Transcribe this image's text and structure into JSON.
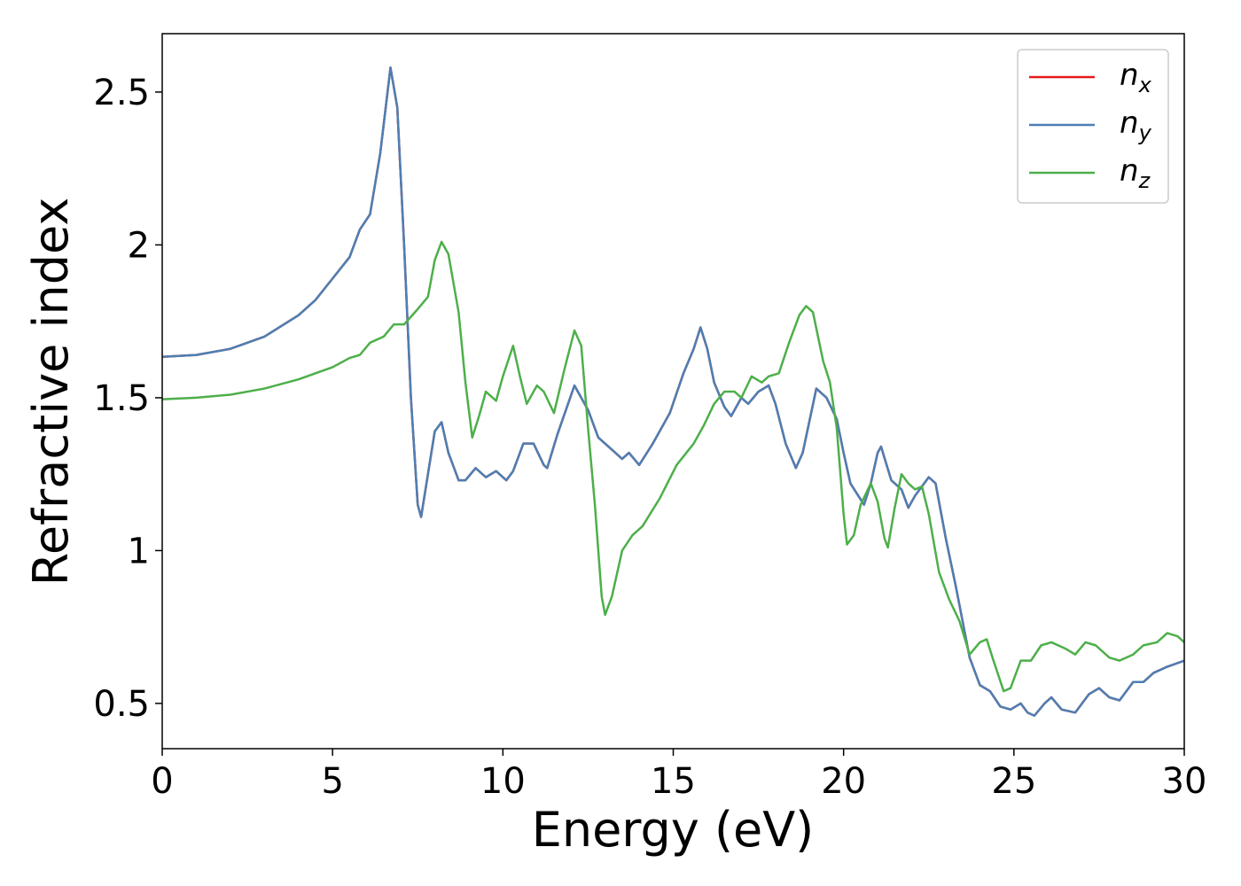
{
  "chart_data": {
    "type": "line",
    "xlabel": "Energy (eV)",
    "ylabel": "Refractive index",
    "xlim": [
      0,
      30
    ],
    "xticks": [
      0,
      5,
      10,
      15,
      20,
      25,
      30
    ],
    "ylim": [
      0.352,
      2.691
    ],
    "yticks": [
      0.5,
      1.0,
      1.5,
      2.0,
      2.5
    ],
    "legend": "upper right",
    "series": [
      {
        "name": "nx",
        "color": "#e41a1c",
        "x": [
          0,
          1,
          2,
          3,
          4,
          4.5,
          5,
          5.5,
          5.8,
          6.1,
          6.4,
          6.7,
          6.9,
          7.1,
          7.3,
          7.5,
          7.6,
          7.8,
          8.0,
          8.2,
          8.4,
          8.7,
          8.9,
          9.2,
          9.5,
          9.8,
          10.1,
          10.3,
          10.6,
          10.9,
          11.2,
          11.3,
          11.6,
          12.1,
          12.5,
          12.8,
          13.2,
          13.5,
          13.7,
          14.0,
          14.4,
          14.9,
          15.3,
          15.6,
          15.8,
          16.0,
          16.2,
          16.5,
          16.7,
          17.0,
          17.2,
          17.5,
          17.8,
          18.0,
          18.3,
          18.6,
          18.8,
          19.2,
          19.5,
          19.8,
          20.0,
          20.2,
          20.6,
          20.8,
          21.0,
          21.1,
          21.4,
          21.7,
          21.9,
          22.1,
          22.5,
          22.7,
          23.0,
          23.3,
          23.7,
          24.0,
          24.3,
          24.6,
          24.9,
          25.2,
          25.4,
          25.6,
          25.9,
          26.1,
          26.4,
          26.8,
          27.2,
          27.5,
          27.8,
          28.1,
          28.5,
          28.8,
          29.1,
          29.5,
          30
        ],
        "values": [
          1.634,
          1.64,
          1.66,
          1.7,
          1.77,
          1.82,
          1.89,
          1.96,
          2.05,
          2.1,
          2.3,
          2.58,
          2.45,
          2.0,
          1.5,
          1.15,
          1.11,
          1.25,
          1.39,
          1.42,
          1.32,
          1.23,
          1.23,
          1.27,
          1.24,
          1.26,
          1.23,
          1.26,
          1.35,
          1.35,
          1.28,
          1.27,
          1.38,
          1.54,
          1.46,
          1.37,
          1.33,
          1.3,
          1.32,
          1.28,
          1.35,
          1.45,
          1.58,
          1.66,
          1.73,
          1.66,
          1.55,
          1.47,
          1.44,
          1.5,
          1.48,
          1.52,
          1.54,
          1.48,
          1.35,
          1.27,
          1.32,
          1.53,
          1.5,
          1.43,
          1.32,
          1.22,
          1.15,
          1.22,
          1.32,
          1.34,
          1.23,
          1.2,
          1.14,
          1.18,
          1.24,
          1.22,
          1.04,
          0.88,
          0.65,
          0.56,
          0.54,
          0.49,
          0.48,
          0.5,
          0.47,
          0.46,
          0.5,
          0.52,
          0.48,
          0.47,
          0.53,
          0.55,
          0.52,
          0.51,
          0.57,
          0.57,
          0.6,
          0.62,
          0.64
        ]
      },
      {
        "name": "ny",
        "color": "#4c7fb3",
        "x": [
          0,
          1,
          2,
          3,
          4,
          4.5,
          5,
          5.5,
          5.8,
          6.1,
          6.4,
          6.7,
          6.9,
          7.1,
          7.3,
          7.5,
          7.6,
          7.8,
          8.0,
          8.2,
          8.4,
          8.7,
          8.9,
          9.2,
          9.5,
          9.8,
          10.1,
          10.3,
          10.6,
          10.9,
          11.2,
          11.3,
          11.6,
          12.1,
          12.5,
          12.8,
          13.2,
          13.5,
          13.7,
          14.0,
          14.4,
          14.9,
          15.3,
          15.6,
          15.8,
          16.0,
          16.2,
          16.5,
          16.7,
          17.0,
          17.2,
          17.5,
          17.8,
          18.0,
          18.3,
          18.6,
          18.8,
          19.2,
          19.5,
          19.8,
          20.0,
          20.2,
          20.6,
          20.8,
          21.0,
          21.1,
          21.4,
          21.7,
          21.9,
          22.1,
          22.5,
          22.7,
          23.0,
          23.3,
          23.7,
          24.0,
          24.3,
          24.6,
          24.9,
          25.2,
          25.4,
          25.6,
          25.9,
          26.1,
          26.4,
          26.8,
          27.2,
          27.5,
          27.8,
          28.1,
          28.5,
          28.8,
          29.1,
          29.5,
          30
        ],
        "values": [
          1.634,
          1.64,
          1.66,
          1.7,
          1.77,
          1.82,
          1.89,
          1.96,
          2.05,
          2.1,
          2.3,
          2.58,
          2.45,
          2.0,
          1.5,
          1.15,
          1.11,
          1.25,
          1.39,
          1.42,
          1.32,
          1.23,
          1.23,
          1.27,
          1.24,
          1.26,
          1.23,
          1.26,
          1.35,
          1.35,
          1.28,
          1.27,
          1.38,
          1.54,
          1.46,
          1.37,
          1.33,
          1.3,
          1.32,
          1.28,
          1.35,
          1.45,
          1.58,
          1.66,
          1.73,
          1.66,
          1.55,
          1.47,
          1.44,
          1.5,
          1.48,
          1.52,
          1.54,
          1.48,
          1.35,
          1.27,
          1.32,
          1.53,
          1.5,
          1.43,
          1.32,
          1.22,
          1.15,
          1.22,
          1.32,
          1.34,
          1.23,
          1.2,
          1.14,
          1.18,
          1.24,
          1.22,
          1.04,
          0.88,
          0.65,
          0.56,
          0.54,
          0.49,
          0.48,
          0.5,
          0.47,
          0.46,
          0.5,
          0.52,
          0.48,
          0.47,
          0.53,
          0.55,
          0.52,
          0.51,
          0.57,
          0.57,
          0.6,
          0.62,
          0.64
        ]
      },
      {
        "name": "nz",
        "color": "#4daf4a",
        "x": [
          0,
          1,
          2,
          3,
          4,
          5,
          5.5,
          5.8,
          6.1,
          6.5,
          6.8,
          7.1,
          7.5,
          7.8,
          8.0,
          8.2,
          8.4,
          8.7,
          8.9,
          9.1,
          9.3,
          9.5,
          9.8,
          10.0,
          10.3,
          10.5,
          10.7,
          11.0,
          11.2,
          11.5,
          11.8,
          12.1,
          12.3,
          12.5,
          12.7,
          12.9,
          13.0,
          13.2,
          13.5,
          13.8,
          14.1,
          14.6,
          15.1,
          15.6,
          15.9,
          16.2,
          16.5,
          16.8,
          17.0,
          17.3,
          17.6,
          17.8,
          18.1,
          18.4,
          18.7,
          18.9,
          19.1,
          19.4,
          19.6,
          19.8,
          20.0,
          20.1,
          20.3,
          20.5,
          20.8,
          21.0,
          21.2,
          21.3,
          21.5,
          21.7,
          21.9,
          22.1,
          22.3,
          22.5,
          22.8,
          23.1,
          23.4,
          23.7,
          24.0,
          24.2,
          24.4,
          24.7,
          24.9,
          25.2,
          25.5,
          25.8,
          26.1,
          26.5,
          26.8,
          27.1,
          27.4,
          27.8,
          28.1,
          28.5,
          28.8,
          29.2,
          29.5,
          29.8,
          30
        ],
        "values": [
          1.495,
          1.5,
          1.51,
          1.53,
          1.56,
          1.6,
          1.63,
          1.64,
          1.68,
          1.7,
          1.74,
          1.74,
          1.79,
          1.83,
          1.95,
          2.01,
          1.97,
          1.78,
          1.55,
          1.37,
          1.44,
          1.52,
          1.49,
          1.57,
          1.67,
          1.57,
          1.48,
          1.54,
          1.52,
          1.45,
          1.59,
          1.72,
          1.67,
          1.4,
          1.15,
          0.85,
          0.79,
          0.85,
          1.0,
          1.05,
          1.08,
          1.17,
          1.28,
          1.35,
          1.41,
          1.48,
          1.52,
          1.52,
          1.5,
          1.57,
          1.55,
          1.57,
          1.58,
          1.68,
          1.77,
          1.8,
          1.78,
          1.62,
          1.55,
          1.4,
          1.12,
          1.02,
          1.05,
          1.15,
          1.22,
          1.16,
          1.04,
          1.01,
          1.14,
          1.25,
          1.22,
          1.2,
          1.21,
          1.12,
          0.93,
          0.84,
          0.77,
          0.66,
          0.7,
          0.71,
          0.64,
          0.54,
          0.55,
          0.64,
          0.64,
          0.69,
          0.7,
          0.68,
          0.66,
          0.7,
          0.69,
          0.65,
          0.64,
          0.66,
          0.69,
          0.7,
          0.73,
          0.72,
          0.7
        ]
      }
    ]
  }
}
